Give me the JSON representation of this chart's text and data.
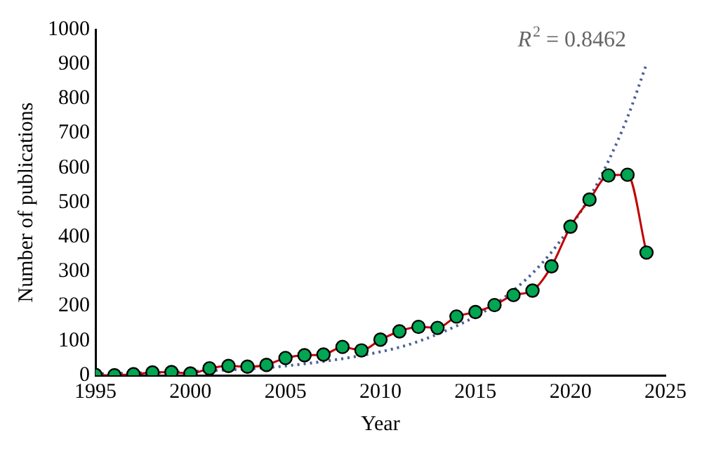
{
  "chart_data": {
    "type": "line",
    "xlabel": "Year",
    "ylabel": "Number of publications",
    "x": [
      1995,
      1996,
      1997,
      1998,
      1999,
      2000,
      2001,
      2002,
      2003,
      2004,
      2005,
      2006,
      2007,
      2008,
      2009,
      2010,
      2011,
      2012,
      2013,
      2014,
      2015,
      2016,
      2017,
      2018,
      2019,
      2020,
      2021,
      2022,
      2023,
      2024
    ],
    "series": [
      {
        "color": "#c00000",
        "marker": "circle",
        "values": [
          1,
          0,
          3,
          8,
          9,
          5,
          20,
          27,
          25,
          30,
          50,
          58,
          60,
          82,
          72,
          103,
          127,
          140,
          137,
          170,
          183,
          203,
          232,
          245,
          315,
          430,
          508,
          578,
          580,
          355
        ]
      },
      {
        "type": "line",
        "color": "#4a5f9a",
        "line_style": "dotted",
        "marker": "none",
        "x": [
          1995,
          2000,
          2005,
          2010,
          2012,
          2015,
          2016,
          2017,
          2018,
          2019,
          2020,
          2021,
          2022,
          2023,
          2024
        ],
        "values": [
          4,
          11,
          27,
          68,
          98,
          170,
          204,
          246,
          295,
          356,
          430,
          514,
          620,
          746,
          900
        ]
      }
    ],
    "xlim": [
      1995,
      2025
    ],
    "xticks": [
      1995,
      2000,
      2005,
      2010,
      2015,
      2020,
      2025
    ],
    "ylim": [
      0,
      1000
    ],
    "yticks": [
      0,
      100,
      200,
      300,
      400,
      500,
      600,
      700,
      800,
      900,
      1000
    ],
    "grid": false,
    "legend": false,
    "annotations": [
      "R$^{2}$ = 0.8462"
    ]
  }
}
